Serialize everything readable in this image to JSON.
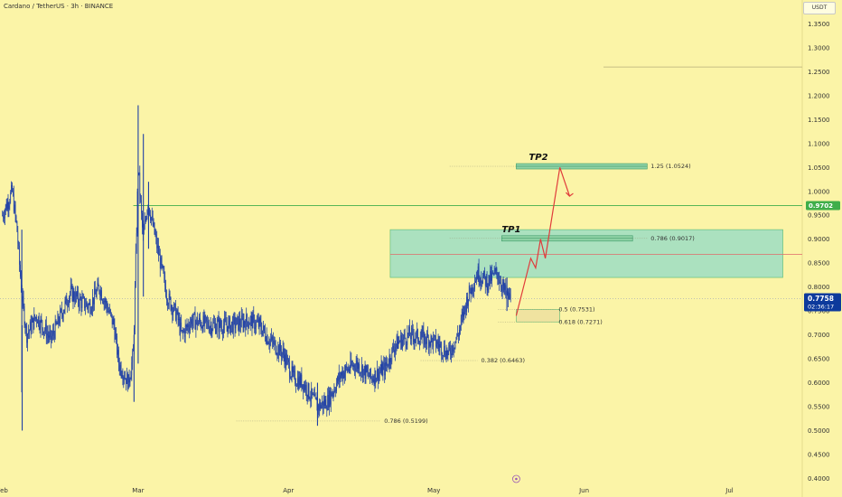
{
  "header": {
    "title": "Cardano / TetherUS · 3h · BINANCE",
    "currency": "USDT"
  },
  "chart_data": {
    "type": "candlestick",
    "price_range": [
      0.38,
      1.4
    ],
    "y_ticks": [
      "1.3500",
      "1.3000",
      "1.2500",
      "1.2000",
      "1.1500",
      "1.1000",
      "1.0500",
      "1.0000",
      "0.9500",
      "0.9000",
      "0.8500",
      "0.8000",
      "0.7500",
      "0.7000",
      "0.6500",
      "0.6000",
      "0.5500",
      "0.5000",
      "0.4500",
      "0.4000"
    ],
    "x_ticks": [
      "Feb",
      "Mar",
      "Apr",
      "May",
      "Jun",
      "Jul"
    ],
    "current_price": {
      "value": "0.7758",
      "countdown": "02:36:17"
    },
    "level_tag": "0.9702",
    "price_path": [
      [
        "Feb 1",
        0.95
      ],
      [
        "Feb 3",
        1.0
      ],
      [
        "Feb 4",
        0.92
      ],
      [
        "Feb 5",
        0.78
      ],
      [
        "Feb 6",
        0.7
      ],
      [
        "Feb 8",
        0.74
      ],
      [
        "Feb 11",
        0.69
      ],
      [
        "Feb 13",
        0.74
      ],
      [
        "Feb 15",
        0.79
      ],
      [
        "Feb 17",
        0.77
      ],
      [
        "Feb 19",
        0.76
      ],
      [
        "Feb 21",
        0.8
      ],
      [
        "Feb 24",
        0.72
      ],
      [
        "Feb 25",
        0.64
      ],
      [
        "Feb 27",
        0.6
      ],
      [
        "Feb 28",
        0.66
      ],
      [
        "Mar 1",
        1.05
      ],
      [
        "Mar 2",
        0.9
      ],
      [
        "Mar 3",
        0.98
      ],
      [
        "Mar 5",
        0.88
      ],
      [
        "Mar 7",
        0.78
      ],
      [
        "Mar 9",
        0.74
      ],
      [
        "Mar 10",
        0.7
      ],
      [
        "Mar 12",
        0.73
      ],
      [
        "Mar 16",
        0.72
      ],
      [
        "Mar 20",
        0.72
      ],
      [
        "Mar 24",
        0.73
      ],
      [
        "Mar 26",
        0.72
      ],
      [
        "Mar 28",
        0.69
      ],
      [
        "Mar 31",
        0.66
      ],
      [
        "Apr 2",
        0.61
      ],
      [
        "Apr 4",
        0.6
      ],
      [
        "Apr 7",
        0.55
      ],
      [
        "Apr 9",
        0.56
      ],
      [
        "Apr 12",
        0.62
      ],
      [
        "Apr 15",
        0.64
      ],
      [
        "Apr 18",
        0.61
      ],
      [
        "Apr 21",
        0.63
      ],
      [
        "Apr 23",
        0.68
      ],
      [
        "Apr 26",
        0.7
      ],
      [
        "Apr 30",
        0.69
      ],
      [
        "May 2",
        0.68
      ],
      [
        "May 4",
        0.66
      ],
      [
        "May 6",
        0.7
      ],
      [
        "May 8",
        0.78
      ],
      [
        "May 10",
        0.83
      ],
      [
        "May 12",
        0.81
      ],
      [
        "May 14",
        0.83
      ],
      [
        "May 16",
        0.78
      ],
      [
        "May 17",
        0.7758
      ]
    ],
    "wicks": [
      [
        "Feb 5",
        0.58,
        0.92
      ],
      [
        "Feb 5",
        0.5,
        0.72
      ],
      [
        "Feb 28",
        0.56,
        0.7
      ],
      [
        "Mar 1",
        0.64,
        1.18
      ],
      [
        "Mar 2",
        0.78,
        1.12
      ],
      [
        "Mar 3",
        0.88,
        1.02
      ],
      [
        "Apr 7",
        0.51,
        0.6
      ],
      [
        "May 16",
        0.75,
        0.82
      ]
    ],
    "zones": [
      {
        "name": "demand-zone",
        "from": "Apr 22",
        "to": "Jul 12",
        "low": 0.82,
        "high": 0.92,
        "color": "#a3e0c2"
      },
      {
        "name": "entry-zone",
        "from": "May 18",
        "to": "May 27",
        "low": 0.7271,
        "high": 0.7531,
        "color": "#efe2a0"
      }
    ],
    "targets": [
      {
        "label": "TP1",
        "date": "May 21",
        "price": 0.9017
      },
      {
        "label": "TP2",
        "date": "May 25",
        "price": 1.0524
      }
    ],
    "fib_levels": [
      {
        "text": "1.25 (1.0524)",
        "price": 1.0524
      },
      {
        "text": "0.786 (0.9017)",
        "price": 0.9017
      },
      {
        "text": "0.5 (0.7531)",
        "price": 0.7531
      },
      {
        "text": "0.618 (0.7271)",
        "price": 0.7271
      },
      {
        "text": "0.382 (0.6463)",
        "price": 0.6463
      },
      {
        "text": "0.786 (0.5199)",
        "price": 0.5199
      }
    ],
    "projection": [
      [
        "May 18",
        0.74
      ],
      [
        "May 21",
        0.86
      ],
      [
        "May 22",
        0.84
      ],
      [
        "May 23",
        0.9
      ],
      [
        "May 24",
        0.86
      ],
      [
        "May 27",
        1.05
      ],
      [
        "May 29",
        0.99
      ]
    ],
    "colors": {
      "candles": "#1e3fa6",
      "projection": "#e03b3b",
      "level": "#3fae4a",
      "price_tag": "#0d3a9c"
    }
  }
}
